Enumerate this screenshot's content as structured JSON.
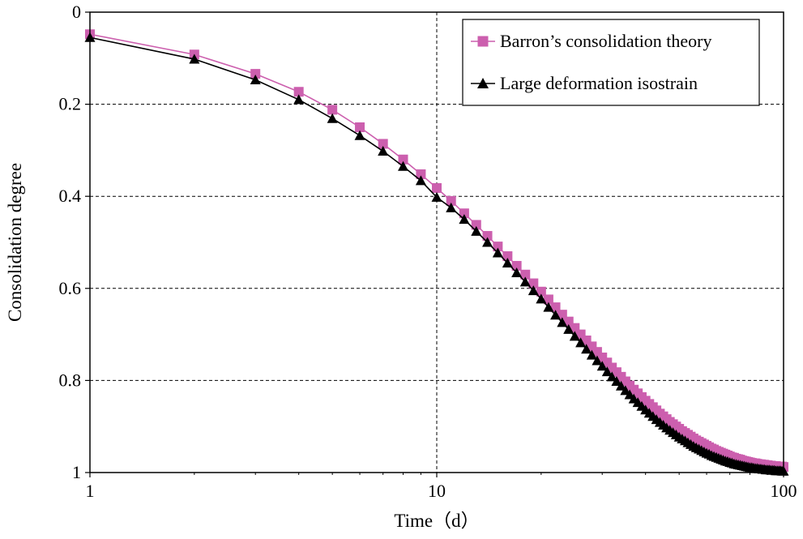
{
  "chart_data": {
    "type": "line",
    "title": "",
    "xlabel": "Time（d）",
    "ylabel": "Consolidation degree",
    "x_scale": "log",
    "xlim": [
      1,
      100
    ],
    "ylim": [
      0,
      1
    ],
    "y_inverted": true,
    "x_ticks": [
      "1",
      "10",
      "100"
    ],
    "y_ticks": [
      "0",
      "0.2",
      "0.4",
      "0.6",
      "0.8",
      "1"
    ],
    "grid": "dashed at y=0.2,0.4,0.6,0.8 and x=10",
    "legend_position": "top-right",
    "series": [
      {
        "name": "Barron’s consolidation theory",
        "color": "#cc5fae",
        "marker": "square",
        "x": [
          1,
          2,
          3,
          4,
          5,
          6,
          7,
          8,
          9,
          10,
          11,
          12,
          13,
          14,
          15,
          16,
          17,
          18,
          19,
          20,
          21,
          22,
          23,
          24,
          25,
          26,
          27,
          28,
          29,
          30,
          31,
          32,
          33,
          34,
          35,
          36,
          37,
          38,
          39,
          40,
          41,
          42,
          43,
          44,
          45,
          46,
          47,
          48,
          49,
          50,
          51,
          52,
          53,
          54,
          55,
          56,
          57,
          58,
          59,
          60,
          61,
          62,
          63,
          64,
          65,
          66,
          67,
          68,
          69,
          70,
          71,
          72,
          73,
          74,
          75,
          76,
          77,
          78,
          79,
          80,
          81,
          82,
          83,
          84,
          85,
          86,
          87,
          88,
          89,
          90,
          91,
          92,
          93,
          94,
          95,
          96,
          97,
          98,
          99,
          100
        ],
        "y": [
          0.048,
          0.092,
          0.134,
          0.173,
          0.212,
          0.25,
          0.286,
          0.32,
          0.352,
          0.382,
          0.41,
          0.437,
          0.462,
          0.486,
          0.509,
          0.53,
          0.551,
          0.57,
          0.589,
          0.607,
          0.624,
          0.641,
          0.657,
          0.672,
          0.686,
          0.7,
          0.713,
          0.726,
          0.738,
          0.75,
          0.761,
          0.772,
          0.782,
          0.792,
          0.802,
          0.811,
          0.82,
          0.828,
          0.836,
          0.844,
          0.851,
          0.858,
          0.865,
          0.872,
          0.878,
          0.884,
          0.89,
          0.895,
          0.9,
          0.905,
          0.91,
          0.914,
          0.918,
          0.922,
          0.926,
          0.93,
          0.933,
          0.936,
          0.939,
          0.942,
          0.945,
          0.948,
          0.95,
          0.953,
          0.955,
          0.957,
          0.959,
          0.961,
          0.963,
          0.965,
          0.967,
          0.968,
          0.97,
          0.971,
          0.972,
          0.974,
          0.975,
          0.976,
          0.977,
          0.978,
          0.979,
          0.98,
          0.98,
          0.981,
          0.982,
          0.982,
          0.983,
          0.983,
          0.984,
          0.984,
          0.985,
          0.985,
          0.986,
          0.986,
          0.986,
          0.987,
          0.987,
          0.987,
          0.987,
          0.988
        ]
      },
      {
        "name": "Large deformation isostrain",
        "color": "#000000",
        "marker": "triangle",
        "x": [
          1,
          2,
          3,
          4,
          5,
          6,
          7,
          8,
          9,
          10,
          11,
          12,
          13,
          14,
          15,
          16,
          17,
          18,
          19,
          20,
          21,
          22,
          23,
          24,
          25,
          26,
          27,
          28,
          29,
          30,
          31,
          32,
          33,
          34,
          35,
          36,
          37,
          38,
          39,
          40,
          41,
          42,
          43,
          44,
          45,
          46,
          47,
          48,
          49,
          50,
          51,
          52,
          53,
          54,
          55,
          56,
          57,
          58,
          59,
          60,
          61,
          62,
          63,
          64,
          65,
          66,
          67,
          68,
          69,
          70,
          71,
          72,
          73,
          74,
          75,
          76,
          77,
          78,
          79,
          80,
          81,
          82,
          83,
          84,
          85,
          86,
          87,
          88,
          89,
          90,
          91,
          92,
          93,
          94,
          95,
          96,
          97,
          98,
          99,
          100
        ],
        "y": [
          0.055,
          0.102,
          0.147,
          0.19,
          0.231,
          0.268,
          0.302,
          0.335,
          0.366,
          0.402,
          0.425,
          0.45,
          0.476,
          0.5,
          0.523,
          0.545,
          0.566,
          0.586,
          0.605,
          0.623,
          0.641,
          0.658,
          0.674,
          0.689,
          0.704,
          0.718,
          0.732,
          0.745,
          0.757,
          0.769,
          0.781,
          0.792,
          0.802,
          0.812,
          0.822,
          0.831,
          0.84,
          0.848,
          0.856,
          0.864,
          0.871,
          0.878,
          0.885,
          0.891,
          0.897,
          0.903,
          0.908,
          0.913,
          0.918,
          0.923,
          0.927,
          0.931,
          0.935,
          0.939,
          0.943,
          0.946,
          0.949,
          0.952,
          0.955,
          0.958,
          0.96,
          0.963,
          0.965,
          0.967,
          0.969,
          0.971,
          0.973,
          0.975,
          0.976,
          0.978,
          0.979,
          0.981,
          0.982,
          0.983,
          0.984,
          0.985,
          0.986,
          0.987,
          0.988,
          0.989,
          0.989,
          0.99,
          0.991,
          0.991,
          0.992,
          0.992,
          0.993,
          0.993,
          0.994,
          0.994,
          0.994,
          0.995,
          0.995,
          0.995,
          0.996,
          0.996,
          0.996,
          0.996,
          0.997,
          0.997
        ]
      }
    ]
  }
}
